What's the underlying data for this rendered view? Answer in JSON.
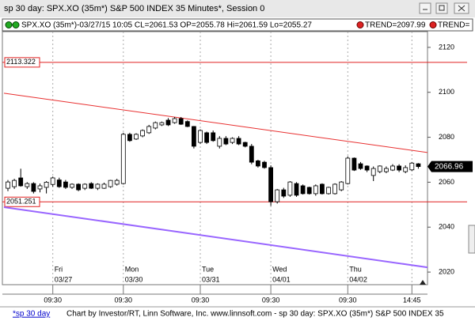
{
  "window_title": "sp 30 day: SPX.XO (35m*) S&P 500 INDEX 35 Minutes*, Session 0",
  "chart_data": {
    "type": "candlestick",
    "status_text": "SPX.XO (35m*)-03/27/15 10:05 CL=2061.53 OP=2055.78 Hi=2061.59 Lo=2055.27",
    "trend_labels": [
      "TREND=2097.99",
      "TREND="
    ],
    "candles": [
      [
        2057.3,
        2061,
        2056,
        2060.1
      ],
      [
        2058,
        2061.5,
        2057,
        2060.8
      ],
      [
        2061.9,
        2066,
        2058,
        2058.4
      ],
      [
        2058,
        2060,
        2057,
        2059.4
      ],
      [
        2059.4,
        2060,
        2055,
        2055.9
      ],
      [
        2057,
        2059.4,
        2055.5,
        2058.4
      ],
      [
        2057.7,
        2060.5,
        2055,
        2060
      ],
      [
        2059,
        2062.5,
        2058,
        2061.9
      ],
      [
        2061,
        2062,
        2057.5,
        2058
      ],
      [
        2060.1,
        2061,
        2057,
        2057.7
      ],
      [
        2057.7,
        2059.5,
        2057,
        2059.1
      ],
      [
        2059.1,
        2059.5,
        2056,
        2056.6
      ],
      [
        2057.3,
        2059.5,
        2056.5,
        2059.1
      ],
      [
        2059.4,
        2060,
        2057,
        2057.3
      ],
      [
        2057.3,
        2059.5,
        2056.5,
        2059.1
      ],
      [
        2057.3,
        2059.8,
        2057,
        2059.1
      ],
      [
        2058,
        2061,
        2057.5,
        2060.8
      ],
      [
        2059.1,
        2061.5,
        2058.5,
        2060.8
      ],
      [
        2059.4,
        2082,
        2059,
        2081.3
      ],
      [
        2081.3,
        2082,
        2078,
        2078.5
      ],
      [
        2079.2,
        2081.8,
        2078.8,
        2081.3
      ],
      [
        2080.6,
        2083.5,
        2080,
        2083
      ],
      [
        2082,
        2085.5,
        2081.5,
        2084.8
      ],
      [
        2084.1,
        2087,
        2083.5,
        2086.5
      ],
      [
        2085.5,
        2087,
        2085,
        2086.5
      ],
      [
        2087.6,
        2088.5,
        2085,
        2085.5
      ],
      [
        2086.5,
        2089,
        2086,
        2088.3
      ],
      [
        2088.3,
        2089,
        2085.5,
        2085.8
      ],
      [
        2087,
        2087.5,
        2084.5,
        2084.8
      ],
      [
        2084.8,
        2085,
        2075,
        2076
      ],
      [
        2077.7,
        2083.5,
        2077,
        2083
      ],
      [
        2082,
        2082.5,
        2077,
        2077.7
      ],
      [
        2082,
        2083,
        2078,
        2078.5
      ],
      [
        2076,
        2080.5,
        2075,
        2079.5
      ],
      [
        2079.5,
        2080.5,
        2076.5,
        2077
      ],
      [
        2077.7,
        2080,
        2077,
        2079.5
      ],
      [
        2079.5,
        2080.5,
        2076.5,
        2077
      ],
      [
        2077.7,
        2078,
        2075.5,
        2076
      ],
      [
        2076,
        2077,
        2068,
        2068.9
      ],
      [
        2069.5,
        2070,
        2066.5,
        2067.2
      ],
      [
        2068.9,
        2069.5,
        2066,
        2066.5
      ],
      [
        2066.5,
        2067.5,
        2049.5,
        2051.3
      ],
      [
        2051.3,
        2057,
        2050.5,
        2056.6
      ],
      [
        2056.6,
        2057.5,
        2053,
        2053.8
      ],
      [
        2054.2,
        2060.5,
        2053.5,
        2060.1
      ],
      [
        2059.4,
        2060,
        2053.5,
        2054.2
      ],
      [
        2058.4,
        2059,
        2054.5,
        2054.9
      ],
      [
        2057.7,
        2058,
        2054.5,
        2054.9
      ],
      [
        2054.9,
        2059,
        2054,
        2058.4
      ],
      [
        2059.1,
        2059.5,
        2054.5,
        2054.9
      ],
      [
        2054.9,
        2058,
        2054.5,
        2057.7
      ],
      [
        2054.9,
        2059.5,
        2054.5,
        2059.1
      ],
      [
        2056.6,
        2060.5,
        2056,
        2060.1
      ],
      [
        2059.4,
        2071.5,
        2059,
        2070.7
      ],
      [
        2070.7,
        2071,
        2065,
        2065.4
      ],
      [
        2068.2,
        2069,
        2065.5,
        2066.1
      ],
      [
        2067.2,
        2067.5,
        2064.5,
        2065.4
      ],
      [
        2063,
        2067,
        2060.5,
        2066.1
      ],
      [
        2064.7,
        2067.5,
        2064,
        2067.2
      ],
      [
        2064.7,
        2067,
        2064,
        2066.1
      ],
      [
        2065.4,
        2068,
        2065,
        2067.2
      ],
      [
        2067.2,
        2068,
        2064.5,
        2065.4
      ],
      [
        2064.7,
        2067.5,
        2064,
        2066.5
      ],
      [
        2065.5,
        2069,
        2065,
        2068.5
      ],
      [
        2068.2,
        2068.5,
        2066,
        2066.96
      ]
    ],
    "x_labels": [
      {
        "index": 7,
        "day": "Fri",
        "date": "03/27",
        "time": "09:30"
      },
      {
        "index": 18,
        "day": "Mon",
        "date": "03/30",
        "time": "09:30"
      },
      {
        "index": 30,
        "day": "Tue",
        "date": "03/31",
        "time": "09:30"
      },
      {
        "index": 41,
        "day": "Wed",
        "date": "04/01",
        "time": "09:30"
      },
      {
        "index": 53,
        "day": "Thu",
        "date": "04/02",
        "time": "09:30"
      },
      {
        "index": 63,
        "time": "14:45"
      }
    ],
    "ylim": [
      2014.4,
      2127
    ],
    "yticks": [
      2020,
      2040,
      2060,
      2080,
      2100,
      2120
    ],
    "hlines": [
      2113.322,
      2051.251
    ],
    "hline_color": "#e02020",
    "trendlines": [
      {
        "color": "#e83030",
        "values": [
          2099.6,
          2073.2
        ]
      },
      {
        "color": "#9966ff",
        "values": [
          2048.9,
          2022.1
        ]
      }
    ]
  },
  "footer": {
    "tab": "*sp 30 day",
    "credit": "Chart by Investor/RT, Linn Software, Inc. www.linnsoft.com - sp 30 day: SPX.XO (35m*) S&P 500 INDEX 35"
  }
}
